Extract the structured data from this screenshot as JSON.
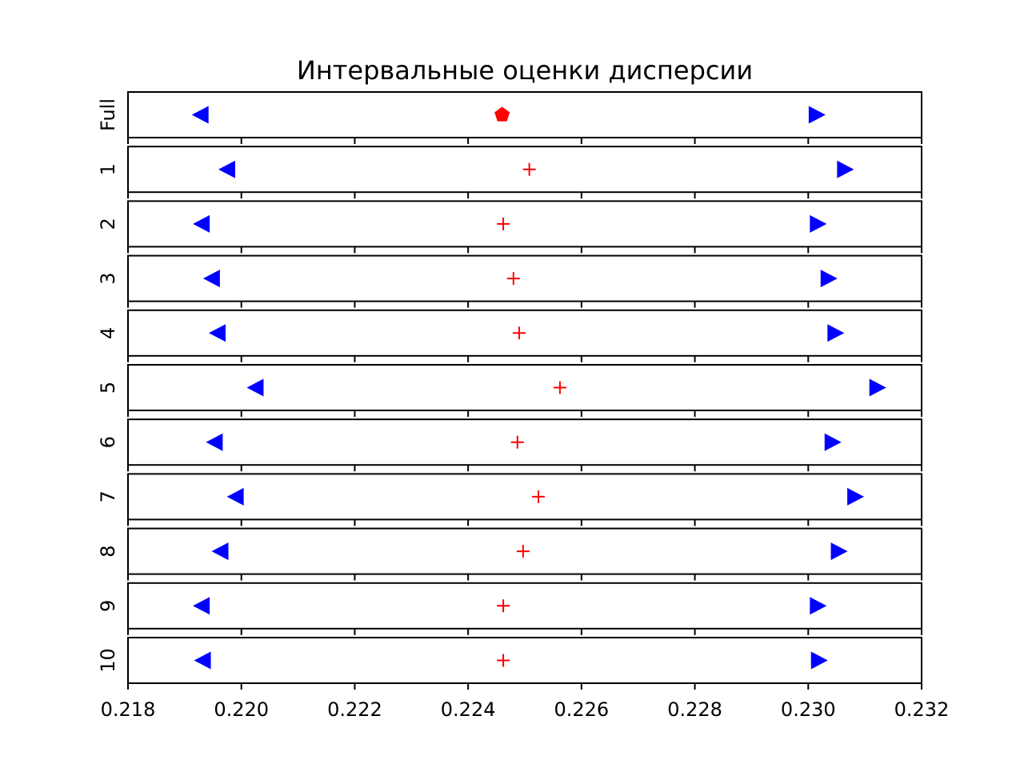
{
  "chart_data": {
    "type": "scatter",
    "title": "Интервальные оценки дисперсии",
    "xlabel": "",
    "ylabel": "",
    "xlim": [
      0.218,
      0.232
    ],
    "x_ticks": [
      0.218,
      0.22,
      0.222,
      0.224,
      0.226,
      0.228,
      0.23,
      0.232
    ],
    "x_tick_labels": [
      "0.218",
      "0.220",
      "0.222",
      "0.224",
      "0.226",
      "0.228",
      "0.230",
      "0.232"
    ],
    "grid": false,
    "colors": {
      "bounds": "#0000ff",
      "estimate": "#ff0000"
    },
    "rows": [
      {
        "label": "Full",
        "lower": 0.21928,
        "estimate": 0.2246,
        "upper": 0.23015,
        "estimate_marker": "pentagon"
      },
      {
        "label": "1",
        "lower": 0.21975,
        "estimate": 0.22508,
        "upper": 0.23065,
        "estimate_marker": "plus"
      },
      {
        "label": "2",
        "lower": 0.2193,
        "estimate": 0.22462,
        "upper": 0.23017,
        "estimate_marker": "plus"
      },
      {
        "label": "3",
        "lower": 0.21948,
        "estimate": 0.2248,
        "upper": 0.23036,
        "estimate_marker": "plus"
      },
      {
        "label": "4",
        "lower": 0.21958,
        "estimate": 0.2249,
        "upper": 0.23048,
        "estimate_marker": "plus"
      },
      {
        "label": "5",
        "lower": 0.22025,
        "estimate": 0.22562,
        "upper": 0.23122,
        "estimate_marker": "plus"
      },
      {
        "label": "6",
        "lower": 0.21953,
        "estimate": 0.22487,
        "upper": 0.23043,
        "estimate_marker": "plus"
      },
      {
        "label": "7",
        "lower": 0.2199,
        "estimate": 0.22524,
        "upper": 0.23083,
        "estimate_marker": "plus"
      },
      {
        "label": "8",
        "lower": 0.21963,
        "estimate": 0.22497,
        "upper": 0.23054,
        "estimate_marker": "plus"
      },
      {
        "label": "9",
        "lower": 0.2193,
        "estimate": 0.22462,
        "upper": 0.23017,
        "estimate_marker": "plus"
      },
      {
        "label": "10",
        "lower": 0.21932,
        "estimate": 0.22462,
        "upper": 0.23019,
        "estimate_marker": "plus"
      }
    ]
  }
}
